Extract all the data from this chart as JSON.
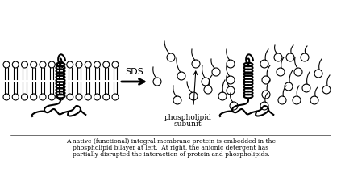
{
  "caption_line1": "A native (functional) integral membrane protein is embedded in the",
  "caption_line2": "phospholipid bilayer at left.  At right, the anionic detergent has",
  "caption_line3": "partially disrupted the interaction of protein and phospholipids.",
  "sds_label": "SDS",
  "phospholipid_label1": "phospholipid",
  "phospholipid_label2": "subunit",
  "bg_color": "#ffffff",
  "line_color": "#000000",
  "figwidth": 4.23,
  "figheight": 2.19,
  "dpi": 100
}
